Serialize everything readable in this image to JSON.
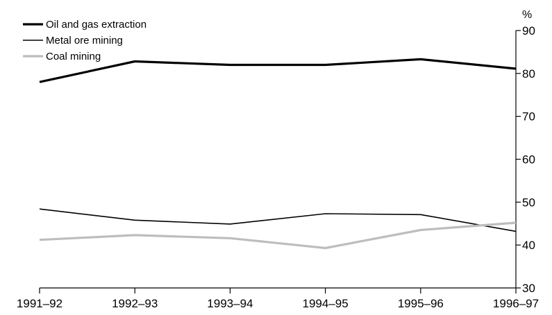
{
  "chart_data": {
    "type": "line",
    "title": "",
    "xlabel": "",
    "ylabel": "%",
    "categories": [
      "1991–92",
      "1992–93",
      "1993–94",
      "1994–95",
      "1995–96",
      "1996–97"
    ],
    "series": [
      {
        "name": "Oil and gas extraction",
        "values": [
          78.0,
          82.8,
          82.0,
          82.0,
          83.3,
          81.1
        ],
        "color": "#000000",
        "weight": "thick"
      },
      {
        "name": "Metal ore mining",
        "values": [
          48.4,
          45.8,
          44.9,
          47.3,
          47.1,
          43.2
        ],
        "color": "#000000",
        "weight": "thin"
      },
      {
        "name": "Coal mining",
        "values": [
          41.2,
          42.3,
          41.6,
          39.3,
          43.5,
          45.2
        ],
        "color": "#bdbdbd",
        "weight": "thick"
      }
    ],
    "ylim": [
      30,
      90
    ],
    "yticks": [
      30,
      40,
      50,
      60,
      70,
      80,
      90
    ],
    "y_axis_side": "right",
    "grid": false,
    "legend_position": "top-left"
  }
}
